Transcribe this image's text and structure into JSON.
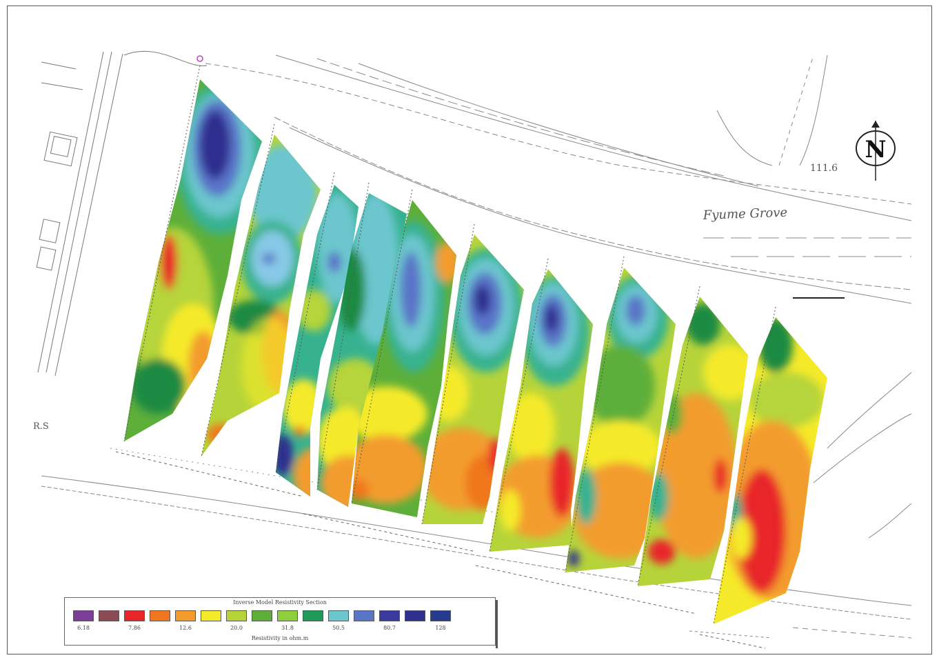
{
  "map": {
    "street_label": "Fyume Grove",
    "elevation_label": "111.6",
    "left_label": "R.S",
    "north_symbol": "N"
  },
  "colors": {
    "purple": "#7b3f9a",
    "maroon": "#8c4a55",
    "red": "#e8262a",
    "orange_red": "#f0771f",
    "orange": "#f39c2d",
    "yellow": "#f5ea2a",
    "yellow_green": "#b6d43a",
    "green": "#5daf3a",
    "dark_green": "#1f8a43",
    "teal": "#37b28f",
    "cyan": "#6cc6cd",
    "light_blue": "#87c9e6",
    "blue": "#5a74c8",
    "navy": "#2e2f8e"
  },
  "legend": {
    "title": "Inverse Model Resistivity Section",
    "units": "Resistivity in ohm.m",
    "swatch_colors": [
      "#7b3f9a",
      "#8c4a55",
      "#e8262a",
      "#f0771f",
      "#f39c2d",
      "#f5ea2a",
      "#b6d43a",
      "#5daf3a",
      "#8fcf3e",
      "#1f9a58",
      "#6cc6cd",
      "#5a74c8",
      "#3a3a9e",
      "#2e2f8e",
      "#263a90"
    ],
    "tick_labels": [
      "6.18",
      "7.86",
      "12.6",
      "20.0",
      "31.8",
      "50.5",
      "80.7",
      "128"
    ]
  }
}
